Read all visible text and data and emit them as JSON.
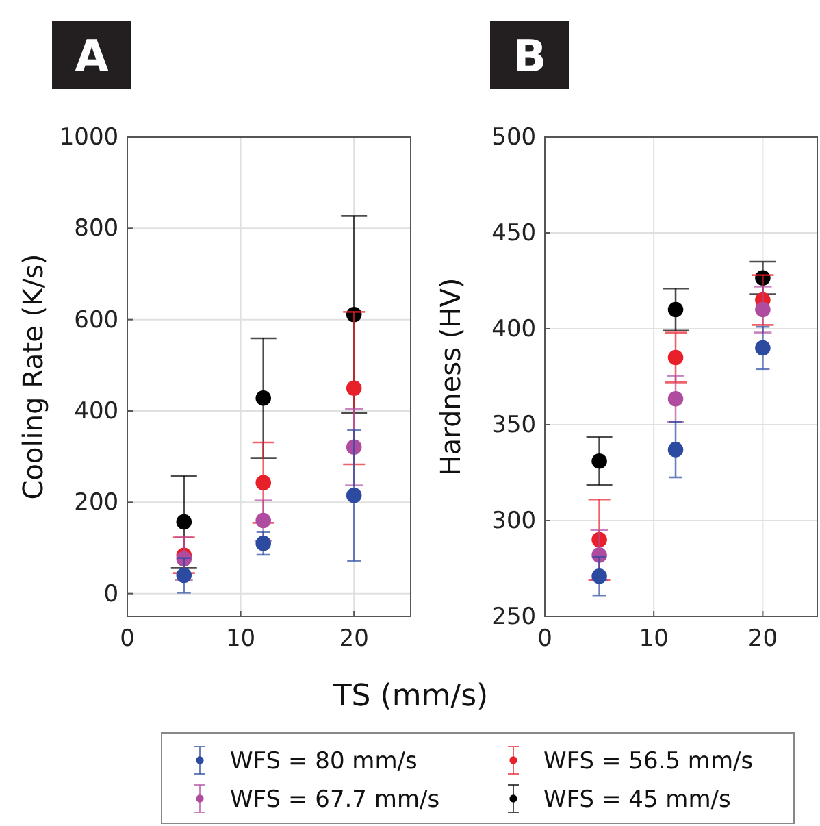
{
  "chart_data": [
    {
      "type": "scatter",
      "title": "A",
      "xlabel": "TS (mm/s)",
      "ylabel": "Cooling Rate (K/s)",
      "x": [
        5,
        12,
        20
      ],
      "xlim": [
        0,
        25
      ],
      "xticks": [
        0,
        10,
        20
      ],
      "ylim": [
        -50,
        1000
      ],
      "yticks": [
        0,
        200,
        400,
        600,
        800,
        1000
      ],
      "grid": true,
      "marker": "circle",
      "legend": "bottom",
      "series": [
        {
          "name": "WFS = 80 mm/s",
          "color": "#2b4aa0",
          "values": [
            40,
            110,
            215
          ],
          "errors": [
            38,
            25,
            143
          ]
        },
        {
          "name": "WFS = 67.7 mm/s",
          "color": "#b04ca0",
          "values": [
            76,
            160,
            321
          ],
          "errors": [
            47,
            44,
            84
          ]
        },
        {
          "name": "WFS = 56.5 mm/s",
          "color": "#e8202a",
          "values": [
            84,
            243,
            450
          ],
          "errors": [
            39,
            88,
            167
          ]
        },
        {
          "name": "WFS = 45 mm/s",
          "color": "#000000",
          "values": [
            157,
            428,
            611
          ],
          "errors": [
            101,
            131,
            216
          ]
        }
      ]
    },
    {
      "type": "scatter",
      "title": "B",
      "ylabel": "Hardness (HV)",
      "x": [
        5,
        12,
        20
      ],
      "xlim": [
        0,
        25
      ],
      "xticks": [
        0,
        10,
        20
      ],
      "ylim": [
        250,
        500
      ],
      "yticks": [
        250,
        300,
        350,
        400,
        450,
        500
      ],
      "grid": true,
      "marker": "circle",
      "legend": false,
      "series": [
        {
          "color": "#2b4aa0",
          "values": [
            271,
            337,
            390
          ],
          "errors": [
            10,
            14.5,
            11
          ]
        },
        {
          "color": "#b04ca0",
          "values": [
            282,
            363.5,
            410
          ],
          "errors": [
            13,
            12,
            12
          ]
        },
        {
          "color": "#e8202a",
          "values": [
            290,
            385,
            415
          ],
          "errors": [
            21,
            13,
            13
          ]
        },
        {
          "color": "#000000",
          "values": [
            331,
            410,
            426.5
          ],
          "errors": [
            12.5,
            11,
            8.5
          ]
        }
      ]
    }
  ]
}
